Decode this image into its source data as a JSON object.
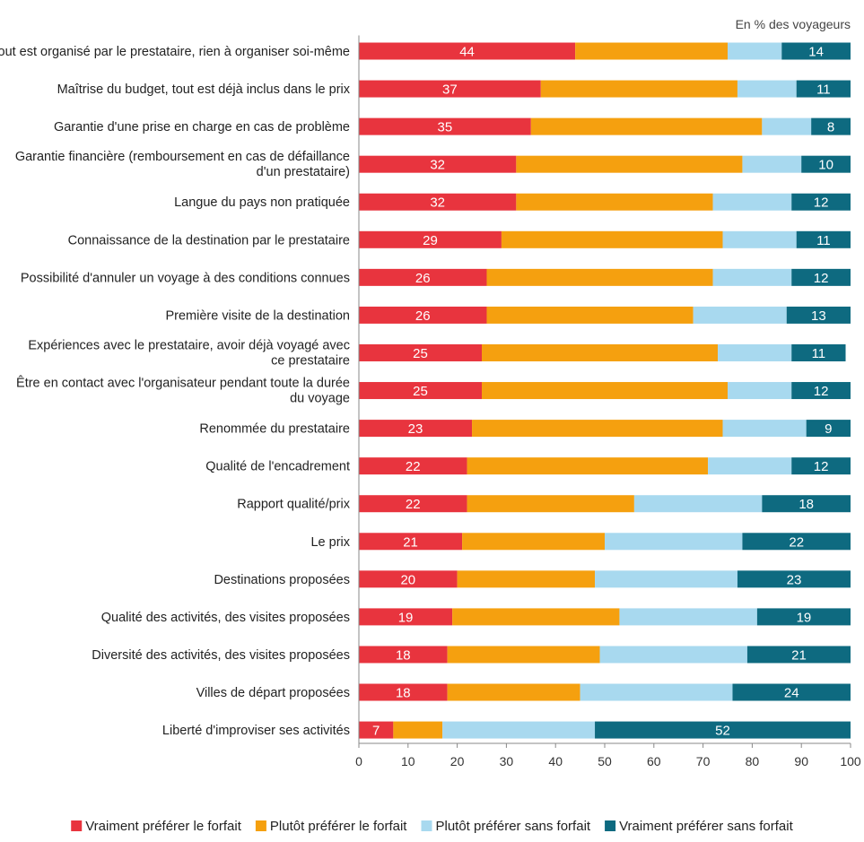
{
  "chart_data": {
    "type": "bar",
    "orientation": "horizontal",
    "stacked": true,
    "unit_note": "En % des voyageurs",
    "categories": [
      [
        "Tout est organisé par le prestataire, rien à organiser soi-même"
      ],
      [
        "Maîtrise du budget, tout est déjà inclus dans le prix"
      ],
      [
        "Garantie d'une prise en charge en cas de problème"
      ],
      [
        "Garantie financière (remboursement en cas de défaillance",
        "d'un prestataire)"
      ],
      [
        "Langue du pays non pratiquée"
      ],
      [
        "Connaissance de la destination par le prestataire"
      ],
      [
        "Possibilité d'annuler un voyage à des conditions connues"
      ],
      [
        "Première visite de la destination"
      ],
      [
        "Expériences avec le prestataire, avoir déjà voyagé avec",
        "ce prestataire"
      ],
      [
        "Être en contact avec l'organisateur pendant toute la durée",
        "du voyage"
      ],
      [
        "Renommée du prestataire"
      ],
      [
        "Qualité de l'encadrement"
      ],
      [
        "Rapport qualité/prix"
      ],
      [
        "Le prix"
      ],
      [
        "Destinations proposées"
      ],
      [
        "Qualité des activités, des visites proposées"
      ],
      [
        "Diversité des activités, des visites proposées"
      ],
      [
        "Villes de départ proposées"
      ],
      [
        "Liberté d'improviser ses activités"
      ]
    ],
    "series": [
      {
        "name": "Vraiment préférer le forfait",
        "color": "#e8343e",
        "values": [
          44,
          37,
          35,
          32,
          32,
          29,
          26,
          26,
          25,
          25,
          23,
          22,
          22,
          21,
          20,
          19,
          18,
          18,
          7
        ],
        "labeled": true
      },
      {
        "name": "Plutôt préférer le forfait",
        "color": "#f5a00f",
        "values": [
          31,
          40,
          47,
          46,
          40,
          45,
          46,
          42,
          48,
          50,
          51,
          49,
          34,
          29,
          28,
          34,
          31,
          27,
          10
        ],
        "labeled": false
      },
      {
        "name": "Plutôt préférer sans forfait",
        "color": "#a8d9ef",
        "values": [
          11,
          12,
          10,
          12,
          16,
          15,
          16,
          19,
          15,
          13,
          17,
          17,
          26,
          28,
          29,
          28,
          30,
          31,
          31
        ],
        "labeled": false
      },
      {
        "name": "Vraiment préférer sans forfait",
        "color": "#0e6a80",
        "values": [
          14,
          11,
          8,
          10,
          12,
          11,
          12,
          13,
          11,
          12,
          9,
          12,
          18,
          22,
          23,
          19,
          21,
          24,
          52
        ],
        "labeled": true
      }
    ],
    "xlim": [
      0,
      100
    ],
    "xticks": [
      "0",
      "10",
      "20",
      "30",
      "40",
      "50",
      "60",
      "70",
      "80",
      "90",
      "100"
    ],
    "grid": false,
    "legend_position": "bottom"
  }
}
